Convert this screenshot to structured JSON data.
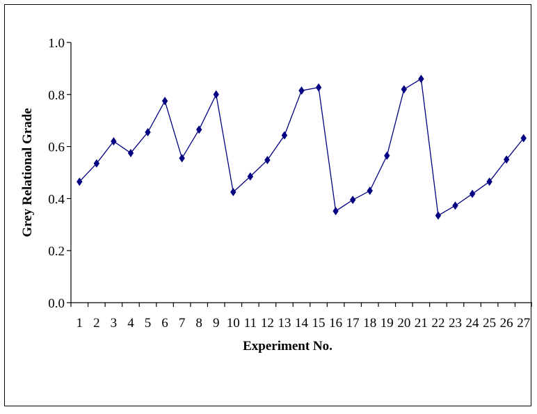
{
  "chart_data": {
    "type": "line",
    "title": "",
    "xlabel": "Experiment No.",
    "ylabel": "Grey Relational Grade",
    "ylim": [
      0.0,
      1.0
    ],
    "yticks": [
      "0.0",
      "0.2",
      "0.4",
      "0.6",
      "0.8",
      "1.0"
    ],
    "categories": [
      "1",
      "2",
      "3",
      "4",
      "5",
      "6",
      "7",
      "8",
      "9",
      "10",
      "11",
      "12",
      "13",
      "14",
      "15",
      "16",
      "17",
      "18",
      "19",
      "20",
      "21",
      "22",
      "23",
      "24",
      "25",
      "26",
      "27"
    ],
    "series": [
      {
        "values": [
          0.465,
          0.535,
          0.62,
          0.575,
          0.655,
          0.775,
          0.555,
          0.665,
          0.8,
          0.425,
          0.485,
          0.548,
          0.643,
          0.815,
          0.827,
          0.352,
          0.395,
          0.43,
          0.565,
          0.82,
          0.86,
          0.335,
          0.373,
          0.418,
          0.465,
          0.55,
          0.632
        ]
      }
    ],
    "grid": false,
    "legend": "none",
    "colors": {
      "series": "#000080",
      "axis": "#000000"
    },
    "marker": "diamond"
  }
}
